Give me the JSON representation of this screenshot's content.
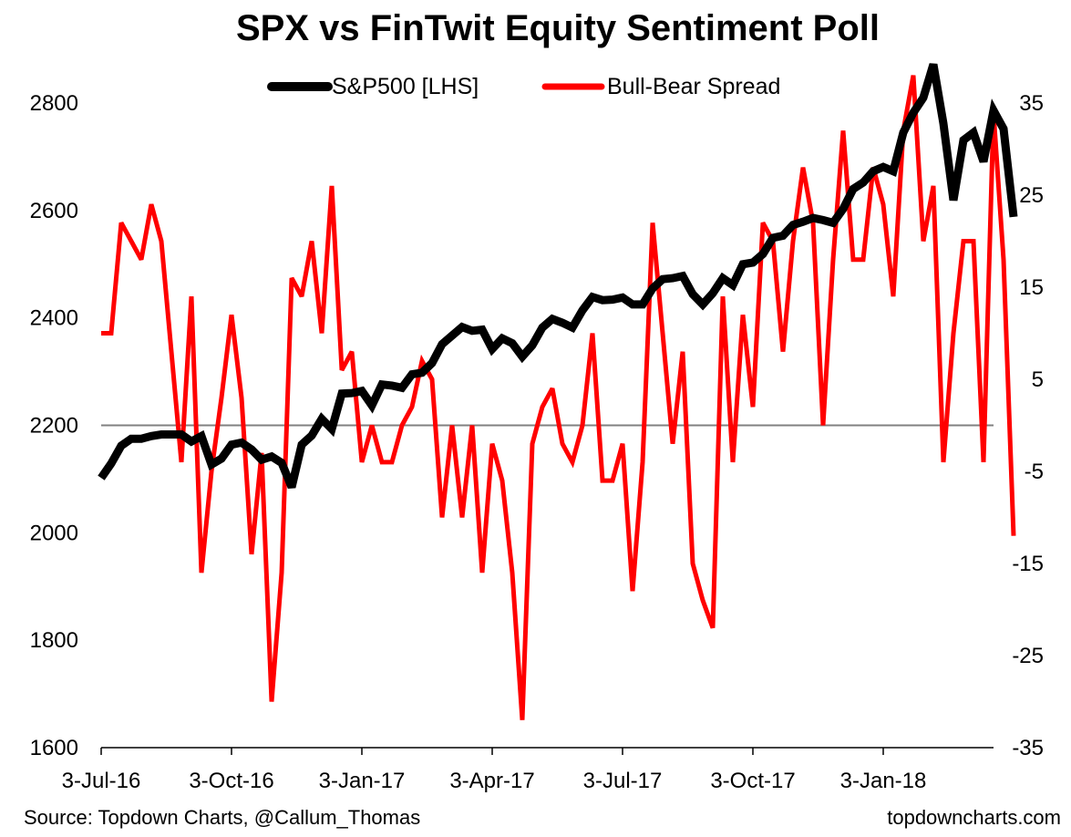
{
  "chart_data": {
    "type": "line",
    "title": "SPX vs FinTwit Equity Sentiment Poll",
    "source": "Source: Topdown Charts, @Callum_Thomas",
    "website": "topdowncharts.com",
    "grid": false,
    "legend": "top",
    "x_ticks": [
      "3-Jul-16",
      "3-Oct-16",
      "3-Jan-17",
      "3-Apr-17",
      "3-Jul-17",
      "3-Oct-17",
      "3-Jan-18"
    ],
    "x_tick_weeks": [
      0,
      13,
      26,
      39,
      52,
      65,
      78
    ],
    "week_range": [
      0,
      89
    ],
    "y_left": {
      "min": 1600,
      "max": 2800,
      "ticks": [
        "1600",
        "1800",
        "2000",
        "2200",
        "2400",
        "2600",
        "2800"
      ]
    },
    "y_right": {
      "min": -35,
      "max": 35,
      "ticks": [
        "-35",
        "-25",
        "-15",
        "-5",
        "5",
        "15",
        "25",
        "35"
      ]
    },
    "reference_line": {
      "axis": "right",
      "value": 0
    },
    "series": [
      {
        "name": "S&P500 [LHS]",
        "axis": "left",
        "color": "#000000",
        "values": [
          2102,
          2129,
          2162,
          2175,
          2175,
          2180,
          2183,
          2183,
          2183,
          2170,
          2180,
          2127,
          2138,
          2164,
          2168,
          2155,
          2136,
          2142,
          2130,
          2085,
          2164,
          2181,
          2212,
          2193,
          2259,
          2260,
          2264,
          2237,
          2276,
          2274,
          2270,
          2295,
          2298,
          2316,
          2351,
          2367,
          2383,
          2376,
          2378,
          2342,
          2362,
          2353,
          2328,
          2349,
          2382,
          2398,
          2391,
          2382,
          2414,
          2439,
          2433,
          2434,
          2438,
          2425,
          2425,
          2455,
          2472,
          2474,
          2478,
          2444,
          2425,
          2446,
          2474,
          2461,
          2500,
          2503,
          2519,
          2549,
          2553,
          2573,
          2579,
          2586,
          2582,
          2577,
          2603,
          2640,
          2652,
          2673,
          2681,
          2673,
          2745,
          2782,
          2810,
          2872,
          2762,
          2619,
          2731,
          2745,
          2691,
          2786,
          2752,
          2588
        ]
      },
      {
        "name": "Bull-Bear Spread",
        "axis": "right",
        "color": "#ff0000",
        "values": [
          10,
          10,
          22,
          20,
          18,
          24,
          20,
          8,
          -4,
          14,
          -16,
          -5,
          3,
          12,
          3,
          -14,
          -3,
          -30,
          -16,
          16,
          14,
          20,
          10,
          26,
          6,
          8,
          -4,
          0,
          -4,
          -4,
          0,
          2,
          7,
          5,
          -10,
          0,
          -10,
          0,
          -16,
          -2,
          -6,
          -16,
          -32,
          -2,
          2,
          4,
          -2,
          -4,
          0,
          10,
          -6,
          -6,
          -2,
          -18,
          -4,
          22,
          10,
          -2,
          8,
          -15,
          -19,
          -22,
          14,
          -4,
          12,
          2,
          22,
          20,
          8,
          20,
          28,
          22,
          0,
          18,
          32,
          18,
          18,
          28,
          24,
          14,
          32,
          38,
          20,
          26,
          -4,
          10,
          20,
          20,
          -4,
          34,
          18,
          -12
        ]
      }
    ]
  }
}
